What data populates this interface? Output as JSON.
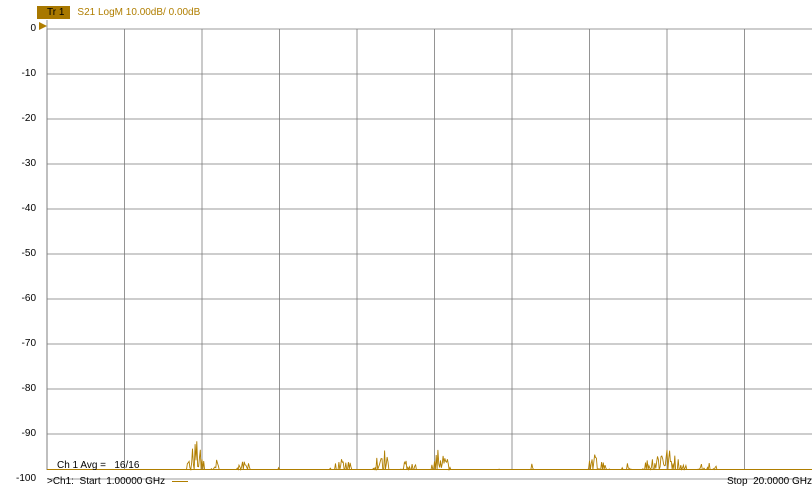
{
  "trace": {
    "badge": "Tr 1",
    "label": "S21 LogM 10.00dB/ 0.00dB",
    "color": "#b07e00",
    "badge_color": "#a87800"
  },
  "channel": {
    "avg_label": "Ch 1 Avg =   16/16",
    "start_label": ">Ch1:  Start  1.00000 GHz",
    "stop_label": "Stop  20.0000 GHz"
  },
  "chart_data": {
    "type": "line",
    "x_start_ghz": 1.0,
    "x_stop_ghz": 20.0,
    "ylim": [
      -101,
      0
    ],
    "yticks": [
      "0",
      "-10",
      "-20",
      "-30",
      "-40",
      "-50",
      "-60",
      "-70",
      "-80",
      "-90",
      "-100"
    ],
    "grid": true,
    "reference_db": 0,
    "series": [
      {
        "noise_floor_db": -101,
        "bursts": [
          {
            "from_ghz": 4.4,
            "to_ghz": 4.9,
            "peak_db": -91
          },
          {
            "from_ghz": 5.0,
            "to_ghz": 5.3,
            "peak_db": -94
          },
          {
            "from_ghz": 5.6,
            "to_ghz": 6.1,
            "peak_db": -95
          },
          {
            "from_ghz": 6.5,
            "to_ghz": 6.9,
            "peak_db": -97
          },
          {
            "from_ghz": 7.3,
            "to_ghz": 7.6,
            "peak_db": -97
          },
          {
            "from_ghz": 7.8,
            "to_ghz": 8.8,
            "peak_db": -95
          },
          {
            "from_ghz": 9.0,
            "to_ghz": 9.4,
            "peak_db": -91
          },
          {
            "from_ghz": 9.5,
            "to_ghz": 10.2,
            "peak_db": -95
          },
          {
            "from_ghz": 10.4,
            "to_ghz": 10.9,
            "peak_db": -92
          },
          {
            "from_ghz": 12.0,
            "to_ghz": 12.2,
            "peak_db": -97
          },
          {
            "from_ghz": 12.6,
            "to_ghz": 13.1,
            "peak_db": -96
          },
          {
            "from_ghz": 13.4,
            "to_ghz": 13.6,
            "peak_db": -98
          },
          {
            "from_ghz": 14.1,
            "to_ghz": 14.8,
            "peak_db": -94
          },
          {
            "from_ghz": 15.0,
            "to_ghz": 15.4,
            "peak_db": -96
          },
          {
            "from_ghz": 15.5,
            "to_ghz": 16.7,
            "peak_db": -92
          },
          {
            "from_ghz": 16.8,
            "to_ghz": 17.6,
            "peak_db": -95
          },
          {
            "from_ghz": 17.8,
            "to_ghz": 18.2,
            "peak_db": -98
          },
          {
            "from_ghz": 18.5,
            "to_ghz": 19.0,
            "peak_db": -99
          }
        ]
      }
    ]
  }
}
